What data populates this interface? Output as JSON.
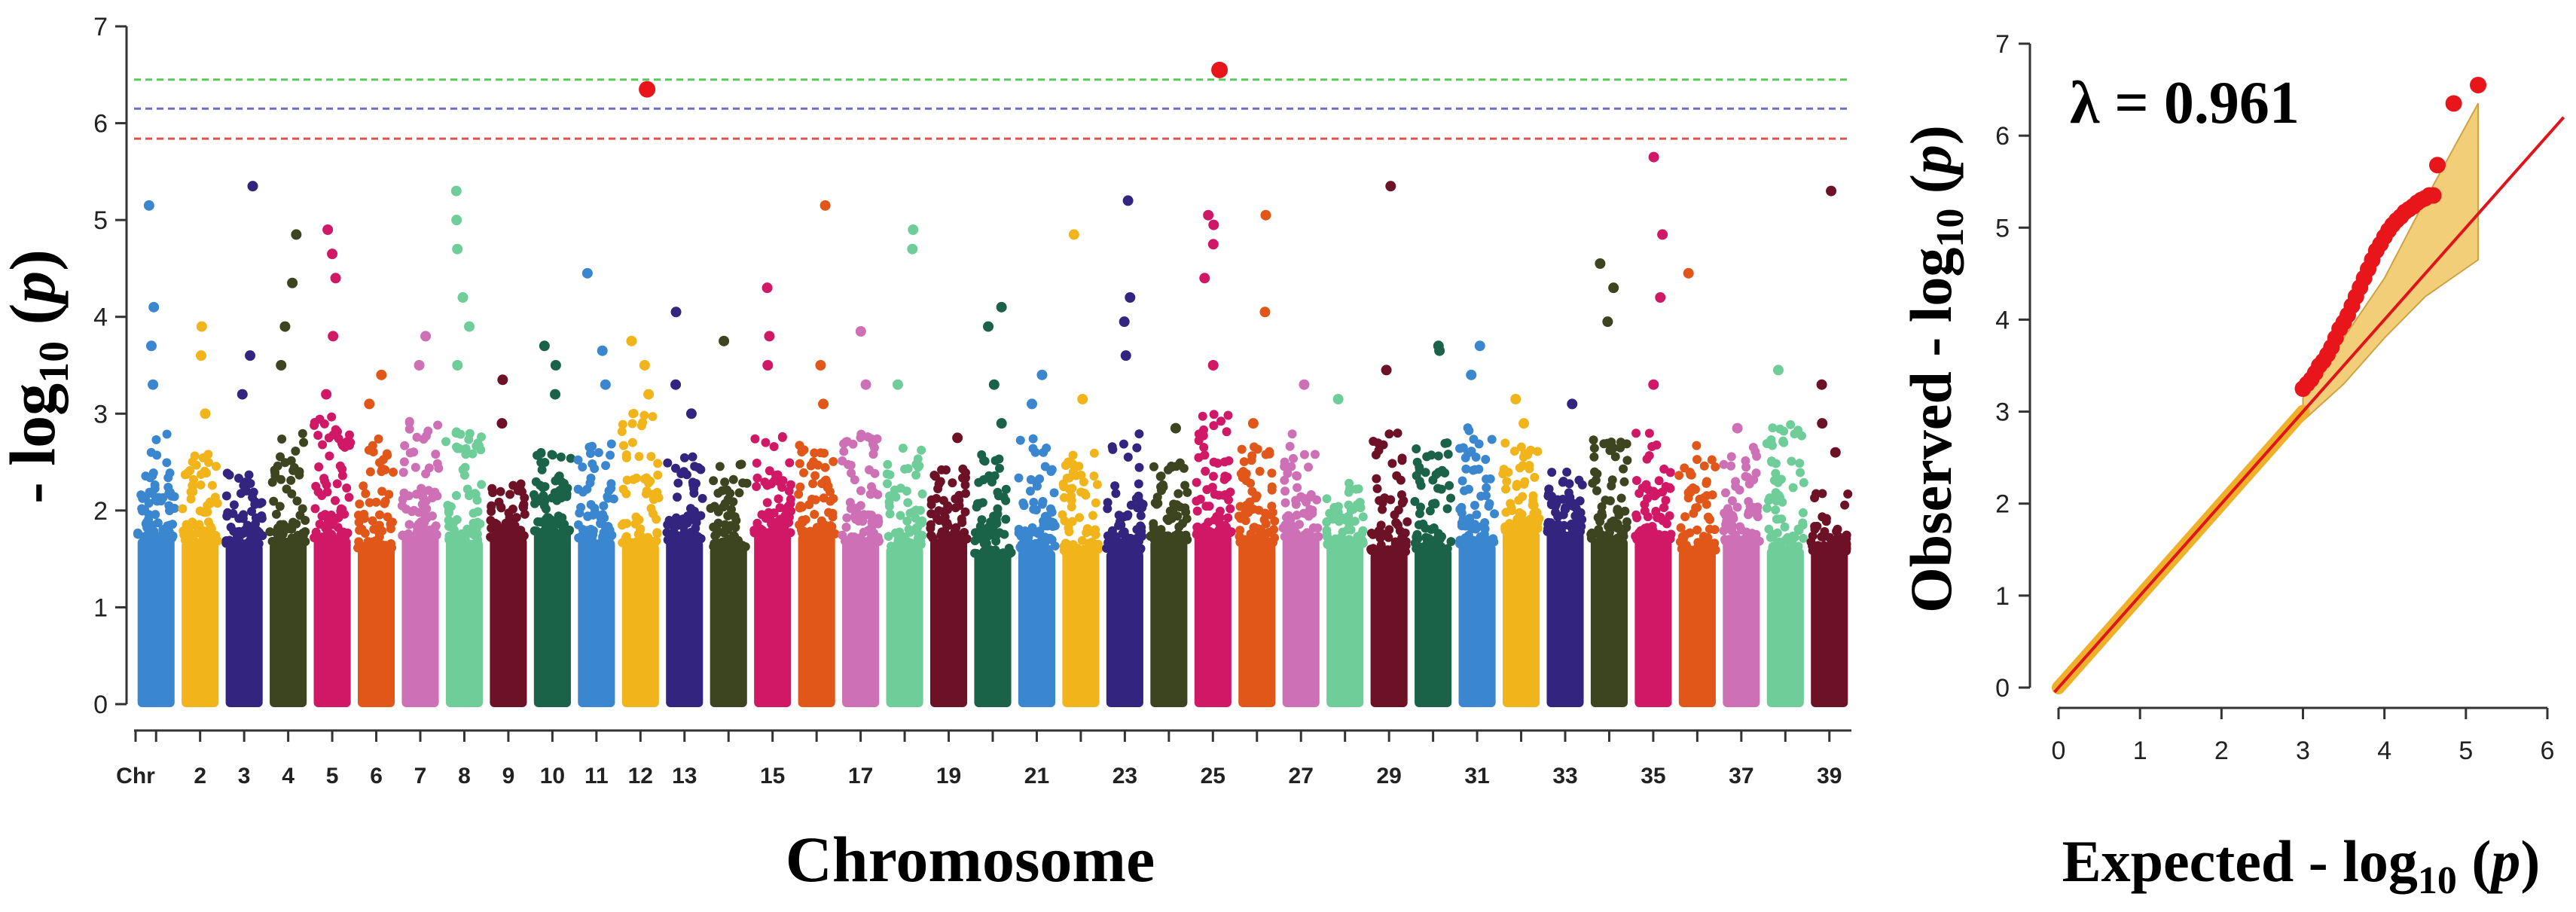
{
  "chart_data": [
    {
      "type": "scatter",
      "subtype": "manhattan",
      "xlabel": "Chromosome",
      "ylabel_prefix": "- log",
      "ylabel_sub": "10",
      "ylabel_var": "p",
      "ylim": [
        0,
        7
      ],
      "y_ticks": [
        "0",
        "1",
        "2",
        "3",
        "4",
        "5",
        "6",
        "7"
      ],
      "x_tick_labels": [
        "Chr",
        "2",
        "3",
        "4",
        "5",
        "6",
        "7",
        "8",
        "9",
        "10",
        "11",
        "12",
        "13",
        "15",
        "17",
        "19",
        "21",
        "23",
        "25",
        "27",
        "29",
        "31",
        "33",
        "35",
        "37",
        "39"
      ],
      "x_tick_chromosomes": [
        0,
        2,
        3,
        4,
        5,
        6,
        7,
        8,
        9,
        10,
        11,
        12,
        13,
        15,
        17,
        19,
        21,
        23,
        25,
        27,
        29,
        31,
        33,
        35,
        37,
        39
      ],
      "threshold_lines": [
        {
          "y": 6.45,
          "color": "#59c95a",
          "style": "dashed"
        },
        {
          "y": 6.15,
          "color": "#6e6ec8",
          "style": "dashed"
        },
        {
          "y": 5.84,
          "color": "#d9534f",
          "style": "dashed"
        }
      ],
      "chromosomes": [
        {
          "chr": 1,
          "color": "#3a87d0",
          "bulk": 2.6,
          "peaks": [
            4.1,
            3.7,
            3.3,
            5.15
          ]
        },
        {
          "chr": 2,
          "color": "#f1b51b",
          "bulk": 2.4,
          "peaks": [
            3.9,
            3.6,
            3.0
          ]
        },
        {
          "chr": 3,
          "color": "#33247f",
          "bulk": 2.2,
          "peaks": [
            3.2,
            3.6,
            5.35
          ]
        },
        {
          "chr": 4,
          "color": "#3c4420",
          "bulk": 2.6,
          "peaks": [
            4.85,
            4.35,
            3.9,
            3.5
          ]
        },
        {
          "chr": 5,
          "color": "#d01867",
          "bulk": 2.8,
          "peaks": [
            4.9,
            4.65,
            4.4,
            3.8,
            3.2
          ]
        },
        {
          "chr": 6,
          "color": "#e1571a",
          "bulk": 2.6,
          "peaks": [
            3.4,
            3.1
          ]
        },
        {
          "chr": 7,
          "color": "#cd70b6",
          "bulk": 2.8,
          "peaks": [
            3.8,
            3.5
          ]
        },
        {
          "chr": 8,
          "color": "#6fcd9a",
          "bulk": 2.7,
          "peaks": [
            5.3,
            5.0,
            4.7,
            4.2,
            3.9,
            3.5
          ]
        },
        {
          "chr": 9,
          "color": "#6d1127",
          "bulk": 2.1,
          "peaks": [
            3.35,
            2.9
          ]
        },
        {
          "chr": 10,
          "color": "#1a6348",
          "bulk": 2.4,
          "peaks": [
            3.7,
            3.5,
            3.2
          ]
        },
        {
          "chr": 11,
          "color": "#3a87d0",
          "bulk": 2.5,
          "peaks": [
            4.45,
            3.65,
            3.3
          ]
        },
        {
          "chr": 12,
          "color": "#f1b51b",
          "bulk": 2.9,
          "peaks": [
            3.75,
            3.5,
            3.2,
            6.35
          ]
        },
        {
          "chr": 13,
          "color": "#33247f",
          "bulk": 2.4,
          "peaks": [
            4.05,
            3.3,
            3.0
          ]
        },
        {
          "chr": 14,
          "color": "#3c4420",
          "bulk": 2.3,
          "peaks": [
            3.75
          ]
        },
        {
          "chr": 15,
          "color": "#d01867",
          "bulk": 2.6,
          "peaks": [
            4.3,
            3.8,
            3.5
          ]
        },
        {
          "chr": 16,
          "color": "#e1571a",
          "bulk": 2.5,
          "peaks": [
            5.15,
            3.5,
            3.1
          ]
        },
        {
          "chr": 17,
          "color": "#cd70b6",
          "bulk": 2.6,
          "peaks": [
            3.85,
            3.3
          ]
        },
        {
          "chr": 18,
          "color": "#6fcd9a",
          "bulk": 2.5,
          "peaks": [
            4.9,
            4.7,
            3.3
          ]
        },
        {
          "chr": 19,
          "color": "#6d1127",
          "bulk": 2.3,
          "peaks": [
            2.75
          ]
        },
        {
          "chr": 20,
          "color": "#1a6348",
          "bulk": 2.4,
          "peaks": [
            4.1,
            3.9,
            3.3,
            2.9
          ]
        },
        {
          "chr": 21,
          "color": "#3a87d0",
          "bulk": 2.6,
          "peaks": [
            3.4,
            3.1
          ]
        },
        {
          "chr": 22,
          "color": "#f1b51b",
          "bulk": 2.4,
          "peaks": [
            4.85,
            3.15
          ]
        },
        {
          "chr": 23,
          "color": "#33247f",
          "bulk": 2.6,
          "peaks": [
            5.2,
            4.2,
            3.95,
            3.6
          ]
        },
        {
          "chr": 24,
          "color": "#3c4420",
          "bulk": 2.3,
          "peaks": [
            2.85
          ]
        },
        {
          "chr": 25,
          "color": "#d01867",
          "bulk": 2.8,
          "peaks": [
            5.05,
            4.95,
            4.75,
            4.4,
            3.5,
            6.55
          ]
        },
        {
          "chr": 26,
          "color": "#e1571a",
          "bulk": 2.5,
          "peaks": [
            5.05,
            4.05,
            2.9
          ]
        },
        {
          "chr": 27,
          "color": "#cd70b6",
          "bulk": 2.6,
          "peaks": [
            3.3
          ]
        },
        {
          "chr": 28,
          "color": "#6fcd9a",
          "bulk": 2.1,
          "peaks": [
            3.15
          ]
        },
        {
          "chr": 29,
          "color": "#6d1127",
          "bulk": 2.6,
          "peaks": [
            5.35,
            3.45
          ]
        },
        {
          "chr": 30,
          "color": "#1a6348",
          "bulk": 2.5,
          "peaks": [
            3.7,
            3.65
          ]
        },
        {
          "chr": 31,
          "color": "#3a87d0",
          "bulk": 2.7,
          "peaks": [
            3.7,
            3.4
          ]
        },
        {
          "chr": 32,
          "color": "#f1b51b",
          "bulk": 2.5,
          "peaks": [
            3.15,
            2.9
          ]
        },
        {
          "chr": 33,
          "color": "#33247f",
          "bulk": 2.2,
          "peaks": [
            3.1
          ]
        },
        {
          "chr": 34,
          "color": "#3c4420",
          "bulk": 2.6,
          "peaks": [
            4.55,
            4.3,
            3.95
          ]
        },
        {
          "chr": 35,
          "color": "#d01867",
          "bulk": 2.6,
          "peaks": [
            5.65,
            4.85,
            4.2,
            3.3
          ]
        },
        {
          "chr": 36,
          "color": "#e1571a",
          "bulk": 2.5,
          "peaks": [
            4.45
          ]
        },
        {
          "chr": 37,
          "color": "#cd70b6",
          "bulk": 2.5,
          "peaks": [
            2.85
          ]
        },
        {
          "chr": 38,
          "color": "#6fcd9a",
          "bulk": 2.7,
          "peaks": [
            3.45
          ]
        },
        {
          "chr": 39,
          "color": "#6d1127",
          "bulk": 2.0,
          "peaks": [
            5.3,
            3.3,
            2.9,
            2.6
          ]
        }
      ],
      "significant_points": [
        {
          "chr": 12,
          "y": 6.35
        },
        {
          "chr": 25,
          "y": 6.55
        }
      ],
      "significant_color": "#e8161a"
    },
    {
      "type": "scatter",
      "subtype": "qq",
      "annotation": "λ = 0.961",
      "xlabel_prefix": "Expected - log",
      "xlabel_sub": "10",
      "xlabel_var": "p",
      "ylabel_prefix": "Observed - log",
      "ylabel_sub": "10",
      "ylabel_var": "p",
      "xlim": [
        0,
        6
      ],
      "ylim": [
        0,
        7
      ],
      "x_ticks": [
        "0",
        "1",
        "2",
        "3",
        "4",
        "5",
        "6"
      ],
      "y_ticks": [
        "0",
        "1",
        "2",
        "3",
        "4",
        "5",
        "6",
        "7"
      ],
      "reference_line": {
        "slope": 1,
        "intercept": 0,
        "color": "#e0141b"
      },
      "confidence_band_color": "#f2c96b",
      "confidence_band_upper": [
        [
          3.0,
          3.15
        ],
        [
          3.5,
          3.8
        ],
        [
          4.0,
          4.45
        ],
        [
          4.5,
          5.3
        ],
        [
          5.15,
          6.35
        ]
      ],
      "confidence_band_lower": [
        [
          3.0,
          2.9
        ],
        [
          3.5,
          3.3
        ],
        [
          4.0,
          3.8
        ],
        [
          4.5,
          4.25
        ],
        [
          5.15,
          4.65
        ]
      ],
      "bulk_color": "#f0b12a",
      "tail_color": "#e8161a",
      "tail_points": [
        [
          3.0,
          3.25
        ],
        [
          3.05,
          3.3
        ],
        [
          3.1,
          3.35
        ],
        [
          3.15,
          3.42
        ],
        [
          3.2,
          3.5
        ],
        [
          3.25,
          3.55
        ],
        [
          3.3,
          3.62
        ],
        [
          3.35,
          3.7
        ],
        [
          3.4,
          3.8
        ],
        [
          3.45,
          3.9
        ],
        [
          3.5,
          3.97
        ],
        [
          3.55,
          4.05
        ],
        [
          3.6,
          4.15
        ],
        [
          3.65,
          4.25
        ],
        [
          3.7,
          4.35
        ],
        [
          3.75,
          4.45
        ],
        [
          3.8,
          4.55
        ],
        [
          3.85,
          4.65
        ],
        [
          3.9,
          4.75
        ],
        [
          3.95,
          4.82
        ],
        [
          4.0,
          4.9
        ],
        [
          4.05,
          4.97
        ],
        [
          4.1,
          5.03
        ],
        [
          4.15,
          5.08
        ],
        [
          4.2,
          5.12
        ],
        [
          4.25,
          5.17
        ],
        [
          4.3,
          5.2
        ],
        [
          4.35,
          5.23
        ],
        [
          4.4,
          5.27
        ],
        [
          4.45,
          5.3
        ],
        [
          4.5,
          5.32
        ],
        [
          4.55,
          5.35
        ],
        [
          4.6,
          5.35
        ],
        [
          4.65,
          5.68
        ],
        [
          4.85,
          6.35
        ],
        [
          5.15,
          6.55
        ]
      ]
    }
  ]
}
